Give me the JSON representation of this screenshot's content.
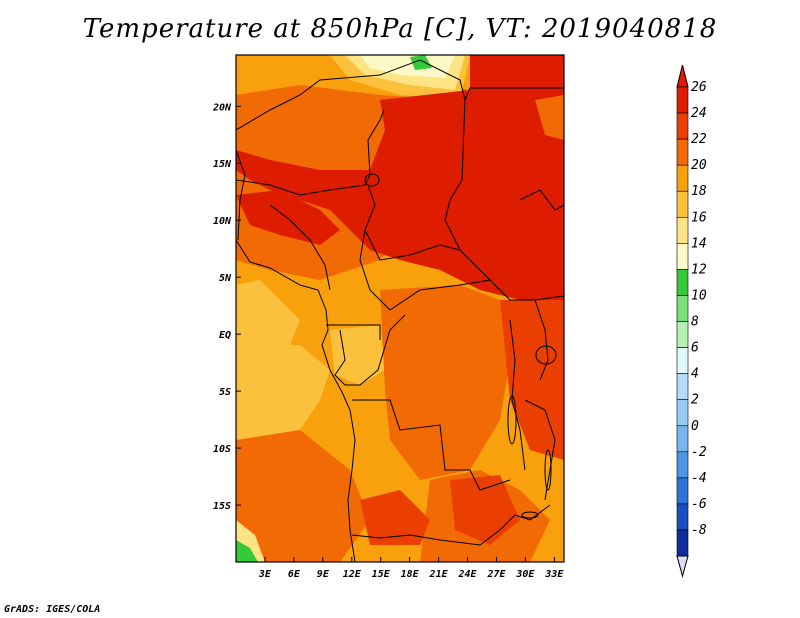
{
  "title": "Temperature at 850hPa [C], VT: 2019040818",
  "credit": "GrADS: IGES/COLA",
  "map": {
    "lon_range": [
      0,
      34
    ],
    "lat_range": [
      -20,
      24.5
    ],
    "x_ticks": [
      {
        "lon": 3,
        "label": "3E"
      },
      {
        "lon": 6,
        "label": "6E"
      },
      {
        "lon": 9,
        "label": "9E"
      },
      {
        "lon": 12,
        "label": "12E"
      },
      {
        "lon": 15,
        "label": "15E"
      },
      {
        "lon": 18,
        "label": "18E"
      },
      {
        "lon": 21,
        "label": "21E"
      },
      {
        "lon": 24,
        "label": "24E"
      },
      {
        "lon": 27,
        "label": "27E"
      },
      {
        "lon": 30,
        "label": "30E"
      },
      {
        "lon": 33,
        "label": "33E"
      }
    ],
    "y_ticks": [
      {
        "lat": 20,
        "label": "20N"
      },
      {
        "lat": 15,
        "label": "15N"
      },
      {
        "lat": 10,
        "label": "10N"
      },
      {
        "lat": 5,
        "label": "5N"
      },
      {
        "lat": 0,
        "label": "EQ"
      },
      {
        "lat": -5,
        "label": "5S"
      },
      {
        "lat": -10,
        "label": "10S"
      },
      {
        "lat": -15,
        "label": "15S"
      }
    ]
  },
  "colorbar": {
    "min": -8,
    "max": 26,
    "labels": [
      "26",
      "24",
      "22",
      "20",
      "18",
      "16",
      "14",
      "12",
      "10",
      "8",
      "6",
      "4",
      "2",
      "0",
      "-2",
      "-4",
      "-6",
      "-8"
    ],
    "bins": [
      {
        "from": 24,
        "to": 26,
        "color": "#dd1c00"
      },
      {
        "from": 22,
        "to": 24,
        "color": "#ea3f00"
      },
      {
        "from": 20,
        "to": 22,
        "color": "#f26a04"
      },
      {
        "from": 18,
        "to": 20,
        "color": "#f8a10d"
      },
      {
        "from": 16,
        "to": 18,
        "color": "#fbc13c"
      },
      {
        "from": 14,
        "to": 16,
        "color": "#fde484"
      },
      {
        "from": 12,
        "to": 14,
        "color": "#fefac8"
      },
      {
        "from": 10,
        "to": 12,
        "color": "#36c93a"
      },
      {
        "from": 8,
        "to": 10,
        "color": "#78e07a"
      },
      {
        "from": 6,
        "to": 8,
        "color": "#b4f0b4"
      },
      {
        "from": 4,
        "to": 6,
        "color": "#e1f8f8"
      },
      {
        "from": 2,
        "to": 4,
        "color": "#b4dcf8"
      },
      {
        "from": 0,
        "to": 2,
        "color": "#96cdf5"
      },
      {
        "from": -2,
        "to": 0,
        "color": "#78b4f0"
      },
      {
        "from": -4,
        "to": -2,
        "color": "#4c96e6"
      },
      {
        "from": -6,
        "to": -4,
        "color": "#2c74d8"
      },
      {
        "from": -8,
        "to": -6,
        "color": "#1a4fc2"
      },
      {
        "from": -10,
        "to": -8,
        "color": "#0e2c9c"
      }
    ],
    "under_color": "#0a1464",
    "over_color": "#dd1c00",
    "under_arrow_color": "#dcdcf5"
  }
}
